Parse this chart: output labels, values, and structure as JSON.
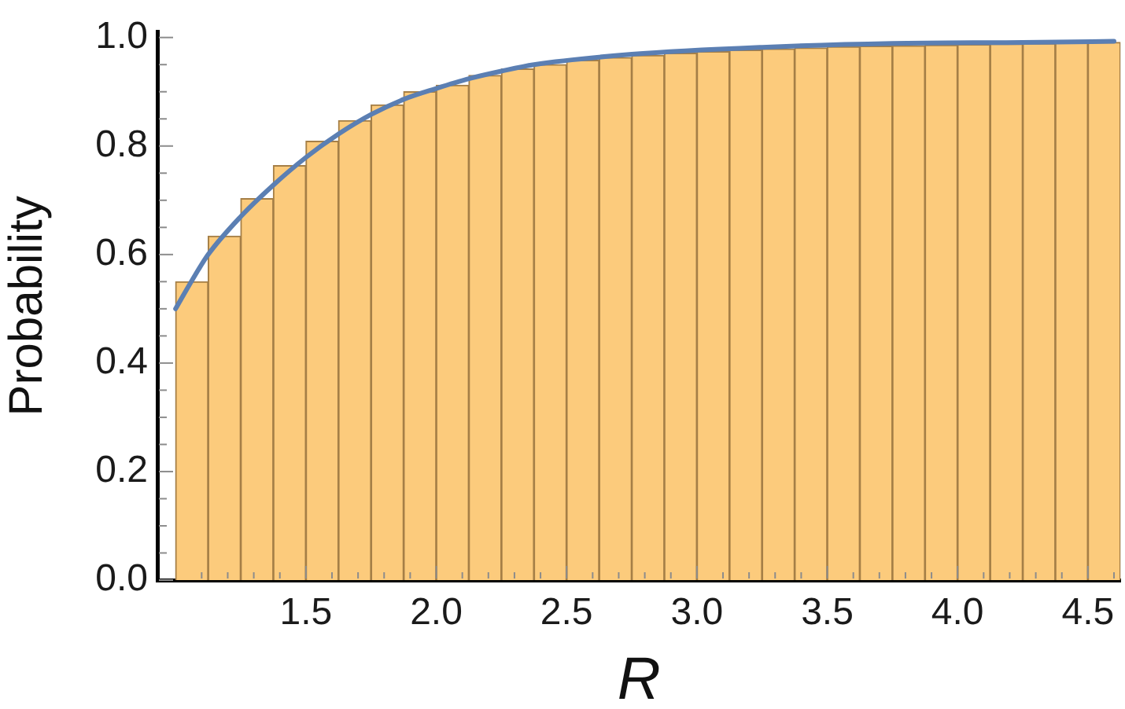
{
  "chart_data": {
    "type": "histogram",
    "xlabel": "R",
    "ylabel": "Probability",
    "bins": [
      1,
      1.125,
      1.25,
      1.375,
      1.5,
      1.625,
      1.75,
      1.875,
      2,
      2.125,
      2.25,
      2.375,
      2.5,
      2.625,
      2.75,
      2.875,
      3,
      3.125,
      3.25,
      3.375,
      3.5,
      3.625,
      3.75,
      3.875,
      4,
      4.125,
      4.25,
      4.375,
      4.5,
      4.625
    ],
    "series": [
      {
        "type": "histogram",
        "color": "#fccb7c",
        "values": [
          0.55,
          0.634,
          0.703,
          0.764,
          0.809,
          0.847,
          0.876,
          0.9,
          0.912,
          0.93,
          0.942,
          0.95,
          0.958,
          0.963,
          0.967,
          0.971,
          0.974,
          0.977,
          0.979,
          0.981,
          0.983,
          0.984,
          0.985,
          0.986,
          0.987,
          0.988,
          0.989,
          0.99,
          0.991
        ]
      },
      {
        "type": "line",
        "color": "#5b7fb3",
        "x": [
          1,
          1.0625,
          1.125,
          1.25,
          1.375,
          1.5,
          1.625,
          1.75,
          1.875,
          2,
          2.125,
          2.25,
          2.375,
          2.75,
          3.25,
          3.75,
          4.25,
          4.6
        ],
        "values": [
          0.5,
          0.552,
          0.6,
          0.67,
          0.728,
          0.779,
          0.822,
          0.858,
          0.886,
          0.906,
          0.924,
          0.938,
          0.95,
          0.969,
          0.982,
          0.989,
          0.991,
          0.993
        ]
      }
    ],
    "xlim": [
      0.93,
      4.625
    ],
    "ylim": [
      0,
      1.01
    ],
    "xticks": [
      {
        "value": 1.1,
        "label": null
      },
      {
        "value": 1.2,
        "label": null
      },
      {
        "value": 1.3,
        "label": null
      },
      {
        "value": 1.4,
        "label": null
      },
      {
        "value": 1.5,
        "label": "1.5"
      },
      {
        "value": 1.6,
        "label": null
      },
      {
        "value": 1.7,
        "label": null
      },
      {
        "value": 1.8,
        "label": null
      },
      {
        "value": 1.9,
        "label": null
      },
      {
        "value": 2,
        "label": "2.0"
      },
      {
        "value": 2.1,
        "label": null
      },
      {
        "value": 2.2,
        "label": null
      },
      {
        "value": 2.3,
        "label": null
      },
      {
        "value": 2.4,
        "label": null
      },
      {
        "value": 2.5,
        "label": "2.5"
      },
      {
        "value": 2.6,
        "label": null
      },
      {
        "value": 2.7,
        "label": null
      },
      {
        "value": 2.8,
        "label": null
      },
      {
        "value": 2.9,
        "label": null
      },
      {
        "value": 3,
        "label": "3.0"
      },
      {
        "value": 3.1,
        "label": null
      },
      {
        "value": 3.2,
        "label": null
      },
      {
        "value": 3.3,
        "label": null
      },
      {
        "value": 3.4,
        "label": null
      },
      {
        "value": 3.5,
        "label": "3.5"
      },
      {
        "value": 3.6,
        "label": null
      },
      {
        "value": 3.7,
        "label": null
      },
      {
        "value": 3.8,
        "label": null
      },
      {
        "value": 3.9,
        "label": null
      },
      {
        "value": 4,
        "label": "4.0"
      },
      {
        "value": 4.1,
        "label": null
      },
      {
        "value": 4.2,
        "label": null
      },
      {
        "value": 4.3,
        "label": null
      },
      {
        "value": 4.4,
        "label": null
      },
      {
        "value": 4.5,
        "label": "4.5"
      },
      {
        "value": 4.6,
        "label": null
      }
    ],
    "yticks": [
      {
        "value": 0,
        "label": "0.0"
      },
      {
        "value": 0.05,
        "label": null
      },
      {
        "value": 0.1,
        "label": null
      },
      {
        "value": 0.15,
        "label": null
      },
      {
        "value": 0.2,
        "label": "0.2"
      },
      {
        "value": 0.25,
        "label": null
      },
      {
        "value": 0.3,
        "label": null
      },
      {
        "value": 0.35,
        "label": null
      },
      {
        "value": 0.4,
        "label": "0.4"
      },
      {
        "value": 0.45,
        "label": null
      },
      {
        "value": 0.5,
        "label": null
      },
      {
        "value": 0.55,
        "label": null
      },
      {
        "value": 0.6,
        "label": "0.6"
      },
      {
        "value": 0.65,
        "label": null
      },
      {
        "value": 0.7,
        "label": null
      },
      {
        "value": 0.75,
        "label": null
      },
      {
        "value": 0.8,
        "label": "0.8"
      },
      {
        "value": 0.85,
        "label": null
      },
      {
        "value": 0.9,
        "label": null
      },
      {
        "value": 0.95,
        "label": null
      },
      {
        "value": 1,
        "label": "1.0"
      }
    ],
    "grid": false,
    "legend": false,
    "marker": "none",
    "line_style": "solid"
  }
}
